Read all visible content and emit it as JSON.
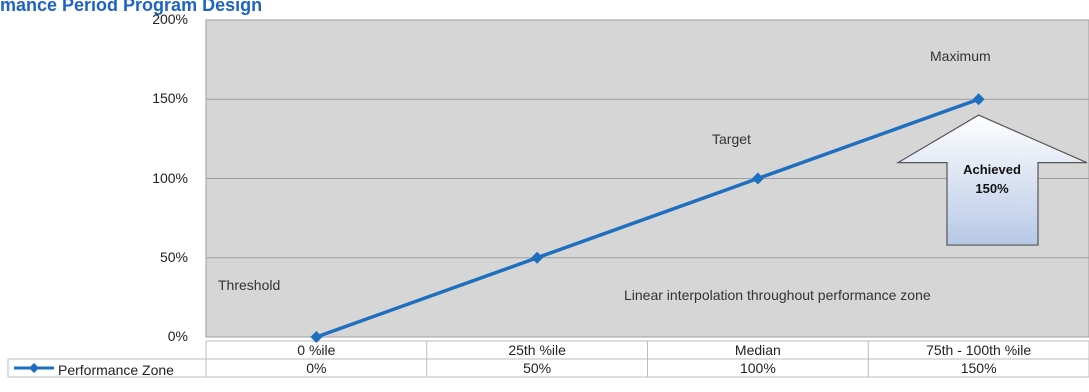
{
  "chart_title": "mance Period Program Design",
  "chart_data": {
    "type": "line",
    "categories": [
      "0 %ile",
      "25th %ile",
      "Median",
      "75th - 100th %ile"
    ],
    "series": [
      {
        "name": "Performance Zone",
        "values": [
          0,
          50,
          100,
          150
        ],
        "value_labels": [
          "0%",
          "50%",
          "100%",
          "150%"
        ],
        "color": "#1f6fbf"
      }
    ],
    "ylim": [
      0,
      200
    ],
    "yticks": [
      "0%",
      "50%",
      "100%",
      "150%",
      "200%"
    ],
    "grid": true,
    "legend": "bottom-left data table",
    "annotations": {
      "threshold": "Threshold",
      "target": "Target",
      "maximum": "Maximum",
      "note": "Linear interpolation throughout performance zone",
      "callout_line1": "Achieved",
      "callout_line2": "150%"
    }
  },
  "colors": {
    "plot_background": "#d6d6d6",
    "gridline": "#9e9e9e",
    "line": "#1f6fbf",
    "title": "#1d63c4",
    "table_border": "#bcbcbc",
    "callout_fill_top": "#ffffff",
    "callout_fill_bottom": "#b7c8e6",
    "callout_stroke": "#555555"
  }
}
